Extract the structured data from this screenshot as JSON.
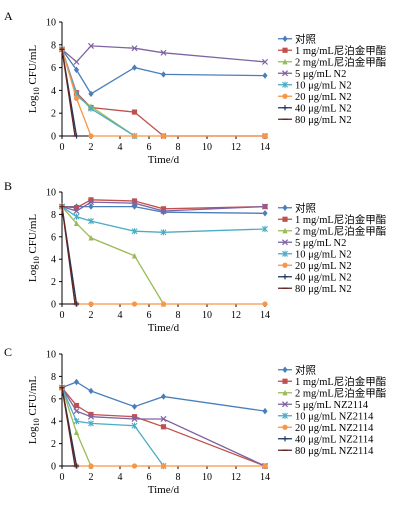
{
  "chart_data": [
    {
      "type": "line",
      "panel": "A",
      "xlabel": "Time/d",
      "ylabel_main": "Log",
      "ylabel_sub": "10",
      "ylabel_rest": " CFU/mL",
      "xlim": [
        0,
        14
      ],
      "ylim": [
        0,
        10
      ],
      "x_ticks": [
        0,
        2,
        4,
        6,
        8,
        10,
        12,
        14
      ],
      "y_ticks": [
        0,
        2,
        4,
        6,
        8,
        10
      ],
      "legend_position": "right",
      "series": [
        {
          "name": "对照",
          "color": "#4a7ebb",
          "marker": "diamond",
          "x": [
            0,
            1,
            2,
            5,
            7,
            14
          ],
          "y": [
            7.6,
            5.8,
            3.7,
            6.0,
            5.4,
            5.3
          ]
        },
        {
          "name": "1 mg/mL尼泊金甲酯",
          "color": "#c0504d",
          "marker": "square",
          "x": [
            0,
            1,
            2,
            5,
            7,
            14
          ],
          "y": [
            7.6,
            3.8,
            2.5,
            2.1,
            0,
            0
          ]
        },
        {
          "name": "2 mg/mL尼泊金甲酯",
          "color": "#9bbb59",
          "marker": "triangle",
          "x": [
            0,
            1,
            2,
            5
          ],
          "y": [
            7.6,
            3.5,
            2.6,
            0
          ]
        },
        {
          "name": "5 μg/mL N2",
          "color": "#7f63a2",
          "marker": "x",
          "x": [
            0,
            1,
            2,
            5,
            7,
            14
          ],
          "y": [
            7.6,
            6.5,
            7.9,
            7.7,
            7.3,
            6.5
          ]
        },
        {
          "name": "10 μg/mL N2",
          "color": "#4bacc6",
          "marker": "star",
          "x": [
            0,
            1,
            2,
            5
          ],
          "y": [
            7.6,
            3.7,
            2.4,
            0
          ]
        },
        {
          "name": "20 μg/mL N2",
          "color": "#f79646",
          "marker": "circle",
          "x": [
            0,
            1,
            2,
            5,
            7,
            14
          ],
          "y": [
            7.6,
            3.3,
            0,
            0,
            0,
            0
          ]
        },
        {
          "name": "40 μg/mL N2",
          "color": "#1f3864",
          "marker": "plus",
          "x": [
            0,
            1
          ],
          "y": [
            7.6,
            0
          ]
        },
        {
          "name": "80 μg/mL N2",
          "color": "#632523",
          "marker": "dash",
          "x": [
            0,
            0.9
          ],
          "y": [
            7.6,
            0
          ]
        }
      ]
    },
    {
      "type": "line",
      "panel": "B",
      "xlabel": "Time/d",
      "ylabel_main": "Log",
      "ylabel_sub": "10",
      "ylabel_rest": " CFU/mL",
      "xlim": [
        0,
        14
      ],
      "ylim": [
        0,
        10
      ],
      "x_ticks": [
        0,
        2,
        4,
        6,
        8,
        10,
        12,
        14
      ],
      "y_ticks": [
        0,
        2,
        4,
        6,
        8,
        10
      ],
      "legend_position": "right",
      "series": [
        {
          "name": "对照",
          "color": "#4a7ebb",
          "marker": "diamond",
          "x": [
            0,
            1,
            2,
            5,
            7,
            14
          ],
          "y": [
            8.7,
            8.7,
            8.7,
            8.7,
            8.2,
            8.1
          ]
        },
        {
          "name": "1 mg/mL尼泊金甲酯",
          "color": "#c0504d",
          "marker": "square",
          "x": [
            0,
            1,
            2,
            5,
            7,
            14
          ],
          "y": [
            8.7,
            8.6,
            9.3,
            9.2,
            8.5,
            8.7
          ]
        },
        {
          "name": "2 mg/mL尼泊金甲酯",
          "color": "#9bbb59",
          "marker": "triangle",
          "x": [
            0,
            1,
            2,
            5,
            7
          ],
          "y": [
            8.7,
            7.2,
            5.9,
            4.3,
            0
          ]
        },
        {
          "name": "5 μg/mL N2",
          "color": "#7f63a2",
          "marker": "x",
          "x": [
            0,
            1,
            2,
            5,
            7,
            14
          ],
          "y": [
            8.7,
            8.3,
            9.1,
            9.0,
            8.3,
            8.7
          ]
        },
        {
          "name": "10 μg/mL N2",
          "color": "#4bacc6",
          "marker": "star",
          "x": [
            0,
            1,
            2,
            5,
            7,
            14
          ],
          "y": [
            8.7,
            7.8,
            7.4,
            6.5,
            6.4,
            6.7
          ]
        },
        {
          "name": "20 μg/mL N2",
          "color": "#f79646",
          "marker": "circle",
          "x": [
            0,
            1,
            2,
            5,
            7,
            14
          ],
          "y": [
            8.7,
            0,
            0,
            0,
            0,
            0
          ]
        },
        {
          "name": "40 μg/mL N2",
          "color": "#1f3864",
          "marker": "plus",
          "x": [
            0,
            1
          ],
          "y": [
            8.7,
            0
          ]
        },
        {
          "name": "80 μg/mL N2",
          "color": "#632523",
          "marker": "dash",
          "x": [
            0,
            0.9
          ],
          "y": [
            8.7,
            0
          ]
        }
      ]
    },
    {
      "type": "line",
      "panel": "C",
      "xlabel": "Time/d",
      "ylabel_main": "Log",
      "ylabel_sub": "10",
      "ylabel_rest": " CFU/mL",
      "xlim": [
        0,
        14
      ],
      "ylim": [
        0,
        10
      ],
      "x_ticks": [
        0,
        2,
        4,
        6,
        8,
        10,
        12,
        14
      ],
      "y_ticks": [
        0,
        2,
        4,
        6,
        8,
        10
      ],
      "legend_position": "right",
      "series": [
        {
          "name": "对照",
          "color": "#4a7ebb",
          "marker": "diamond",
          "x": [
            0,
            1,
            2,
            5,
            7,
            14
          ],
          "y": [
            7.0,
            7.5,
            6.7,
            5.3,
            6.2,
            4.9
          ]
        },
        {
          "name": "1 mg/mL尼泊金甲酯",
          "color": "#c0504d",
          "marker": "square",
          "x": [
            0,
            1,
            2,
            5,
            7,
            14
          ],
          "y": [
            7.0,
            5.4,
            4.6,
            4.4,
            3.5,
            0
          ]
        },
        {
          "name": "2 mg/mL尼泊金甲酯",
          "color": "#9bbb59",
          "marker": "triangle",
          "x": [
            0,
            1,
            2
          ],
          "y": [
            7.0,
            3.0,
            0
          ]
        },
        {
          "name": "5 μg/mL NZ2114",
          "color": "#7f63a2",
          "marker": "x",
          "x": [
            0,
            1,
            2,
            5,
            7,
            14
          ],
          "y": [
            7.0,
            4.9,
            4.4,
            4.2,
            4.2,
            0
          ]
        },
        {
          "name": "10 μg/mL NZ2114",
          "color": "#4bacc6",
          "marker": "star",
          "x": [
            0,
            1,
            2,
            5,
            7
          ],
          "y": [
            7.0,
            4.0,
            3.8,
            3.6,
            0
          ]
        },
        {
          "name": "20 μg/mL NZ2114",
          "color": "#f79646",
          "marker": "circle",
          "x": [
            0,
            1,
            2,
            5,
            7,
            14
          ],
          "y": [
            7.0,
            0,
            0,
            0,
            0,
            0
          ]
        },
        {
          "name": "40 μg/mL NZ2114",
          "color": "#1f3864",
          "marker": "plus",
          "x": [
            0,
            1
          ],
          "y": [
            7.0,
            0
          ]
        },
        {
          "name": "80 μg/mL NZ2114",
          "color": "#632523",
          "marker": "dash",
          "x": [
            0,
            0.9
          ],
          "y": [
            7.0,
            0
          ]
        }
      ]
    }
  ]
}
